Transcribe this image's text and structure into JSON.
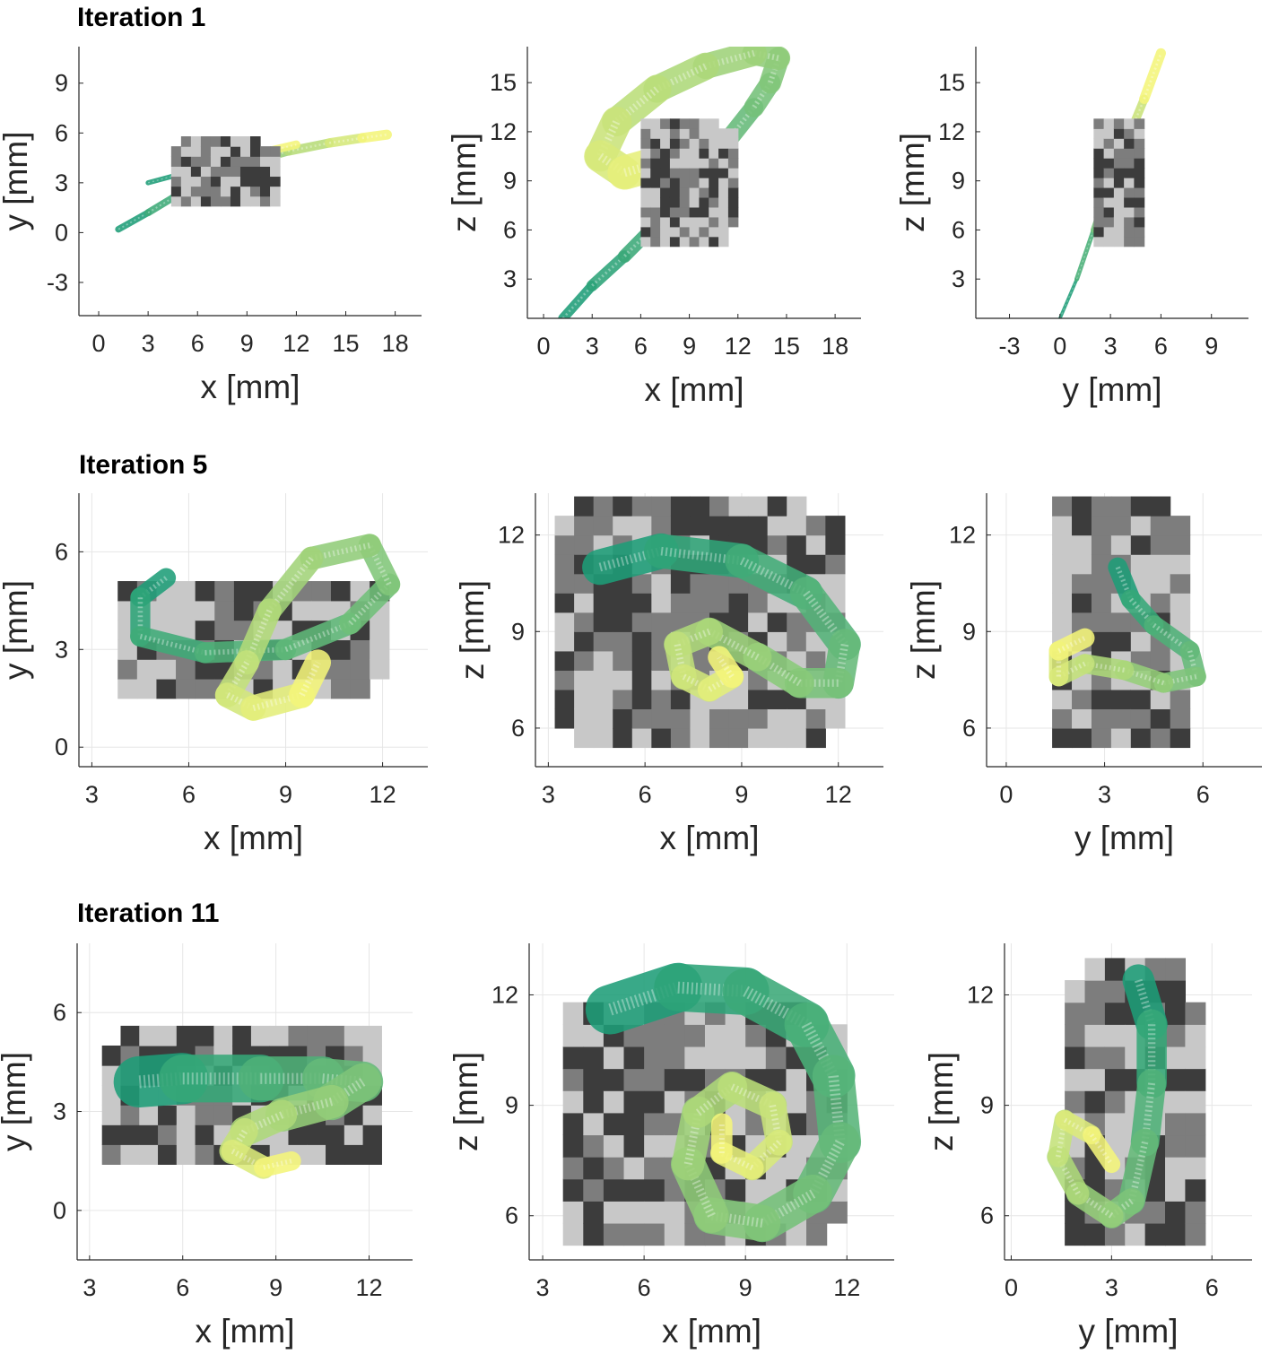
{
  "rows": [
    {
      "title": "Iteration 1"
    },
    {
      "title": "Iteration 5"
    },
    {
      "title": "Iteration 11"
    }
  ],
  "colors": {
    "spiral_start": "#1e9d78",
    "spiral_end": "#f4f57a",
    "voxel_dark": "#3c3c3c",
    "voxel_mid": "#7d7d7d",
    "voxel_light": "#c8c8c8",
    "axis": "#262626",
    "grid": "#e6e6e6"
  },
  "chart_data": [
    {
      "type": "surface-projection",
      "row": 0,
      "view": "top",
      "grid": false,
      "xlabel": "x [mm]",
      "ylabel": "y [mm]",
      "xticks": [
        0,
        3,
        6,
        9,
        12,
        15,
        18
      ],
      "yticks": [
        -3,
        0,
        3,
        6,
        9
      ],
      "xlim": [
        -1.2,
        19.6
      ],
      "ylim": [
        -5,
        11.2
      ],
      "series": [
        {
          "kind": "spiral",
          "points": [
            [
              1.2,
              0.2
            ],
            [
              3,
              1.2
            ],
            [
              5,
              2.4
            ],
            [
              7,
              3.4
            ],
            [
              9,
              4.2
            ],
            [
              11.5,
              4.9
            ],
            [
              14,
              5.4
            ],
            [
              16,
              5.7
            ],
            [
              17.5,
              5.9
            ]
          ],
          "width_start": 0.4,
          "width_end": 0.6
        },
        {
          "kind": "spiral",
          "points": [
            [
              3,
              3
            ],
            [
              6,
              3.8
            ],
            [
              9,
              4.6
            ],
            [
              12,
              5.3
            ]
          ],
          "width_start": 0.3,
          "width_end": 0.5
        },
        {
          "kind": "voxels",
          "bbox": [
            4.4,
            1.6,
            10.8,
            5.2
          ]
        }
      ]
    },
    {
      "type": "surface-projection",
      "row": 0,
      "view": "front",
      "grid": false,
      "xlabel": "x [mm]",
      "ylabel": "z [mm]",
      "xticks": [
        0,
        3,
        6,
        9,
        12,
        15,
        18
      ],
      "yticks": [
        3,
        6,
        9,
        12,
        15
      ],
      "xlim": [
        -1,
        19.6
      ],
      "ylim": [
        0.6,
        17.2
      ],
      "series": [
        {
          "kind": "spiral",
          "points": [
            [
              1.2,
              0.6
            ],
            [
              3,
              2.6
            ],
            [
              5,
              4.4
            ],
            [
              7,
              6.4
            ],
            [
              9,
              8.6
            ],
            [
              11,
              11
            ],
            [
              13,
              13.5
            ],
            [
              14,
              15
            ],
            [
              14.5,
              16.5
            ],
            [
              13,
              16.8
            ],
            [
              10,
              16
            ],
            [
              7,
              14.6
            ],
            [
              4.5,
              12.6
            ],
            [
              3.5,
              10.5
            ],
            [
              5,
              9.5
            ],
            [
              7.5,
              10.2
            ],
            [
              9.5,
              11
            ]
          ],
          "width_start": 0.6,
          "width_end": 2.2
        },
        {
          "kind": "voxels",
          "bbox": [
            6,
            5,
            11.4,
            12.4
          ]
        }
      ]
    },
    {
      "type": "surface-projection",
      "row": 0,
      "view": "side",
      "grid": false,
      "xlabel": "y [mm]",
      "ylabel": "z [mm]",
      "xticks": [
        -3,
        0,
        3,
        6,
        9
      ],
      "yticks": [
        3,
        6,
        9,
        12,
        15
      ],
      "xlim": [
        -5,
        11.2
      ],
      "ylim": [
        0.6,
        17.2
      ],
      "series": [
        {
          "kind": "spiral",
          "points": [
            [
              0,
              0.6
            ],
            [
              1,
              3
            ],
            [
              2,
              6
            ],
            [
              3,
              9
            ],
            [
              4,
              11.5
            ],
            [
              5,
              14
            ],
            [
              6,
              16.8
            ]
          ],
          "width_start": 0.2,
          "width_end": 0.6
        },
        {
          "kind": "voxels",
          "bbox": [
            2,
            5,
            5,
            12.5
          ]
        }
      ]
    },
    {
      "type": "surface-projection",
      "row": 1,
      "view": "top",
      "grid": true,
      "xlabel": "x [mm]",
      "ylabel": "y [mm]",
      "xticks": [
        3,
        6,
        9,
        12
      ],
      "yticks": [
        0,
        3,
        6
      ],
      "xlim": [
        2.6,
        13.4
      ],
      "ylim": [
        -0.6,
        7.8
      ],
      "series": [
        {
          "kind": "voxels",
          "bbox": [
            3.8,
            1.5,
            12,
            5.1
          ]
        },
        {
          "kind": "spiral",
          "points": [
            [
              5.3,
              5.2
            ],
            [
              4.5,
              4.6
            ],
            [
              4.5,
              3.4
            ],
            [
              6.5,
              2.9
            ],
            [
              9,
              3
            ],
            [
              11,
              3.8
            ],
            [
              12.2,
              5
            ],
            [
              11.6,
              6.2
            ],
            [
              9.8,
              5.8
            ],
            [
              8.5,
              4.2
            ],
            [
              7.8,
              2.6
            ],
            [
              7.2,
              1.6
            ],
            [
              8,
              1.2
            ],
            [
              9.5,
              1.6
            ],
            [
              10,
              2.6
            ]
          ],
          "width_start": 0.6,
          "width_end": 0.8
        }
      ]
    },
    {
      "type": "surface-projection",
      "row": 1,
      "view": "front",
      "grid": true,
      "xlabel": "x [mm]",
      "ylabel": "z [mm]",
      "xticks": [
        3,
        6,
        9,
        12
      ],
      "yticks": [
        6,
        9,
        12
      ],
      "xlim": [
        2.6,
        13.4
      ],
      "ylim": [
        4.8,
        13.3
      ],
      "series": [
        {
          "kind": "voxels",
          "bbox": [
            3.2,
            5.4,
            11.6,
            12.6
          ]
        },
        {
          "kind": "spiral",
          "points": [
            [
              4.6,
              11
            ],
            [
              6.5,
              11.5
            ],
            [
              9,
              11.2
            ],
            [
              11,
              10.2
            ],
            [
              12.2,
              8.6
            ],
            [
              12,
              7.4
            ],
            [
              10.8,
              7.4
            ],
            [
              9.5,
              8.2
            ],
            [
              8,
              9
            ],
            [
              7,
              8.6
            ],
            [
              7.2,
              7.6
            ],
            [
              8,
              7.2
            ],
            [
              8.7,
              7.6
            ],
            [
              8.3,
              8.2
            ]
          ],
          "width_start": 1.1,
          "width_end": 0.7
        }
      ]
    },
    {
      "type": "surface-projection",
      "row": 1,
      "view": "side",
      "grid": true,
      "xlabel": "y [mm]",
      "ylabel": "z [mm]",
      "xticks": [
        0,
        3,
        6
      ],
      "yticks": [
        6,
        9,
        12
      ],
      "xlim": [
        -0.6,
        7.8
      ],
      "ylim": [
        4.8,
        13.3
      ],
      "series": [
        {
          "kind": "voxels",
          "bbox": [
            1.4,
            5.4,
            5.4,
            12.8
          ]
        },
        {
          "kind": "spiral",
          "points": [
            [
              3.4,
              11
            ],
            [
              3.8,
              10
            ],
            [
              4.5,
              9.2
            ],
            [
              5.6,
              8.4
            ],
            [
              5.8,
              7.6
            ],
            [
              4.8,
              7.4
            ],
            [
              3.6,
              7.8
            ],
            [
              2.4,
              8
            ],
            [
              1.6,
              7.6
            ],
            [
              1.6,
              8.4
            ],
            [
              2.4,
              8.8
            ]
          ],
          "width_start": 0.6,
          "width_end": 0.6
        }
      ]
    },
    {
      "type": "surface-projection",
      "row": 2,
      "view": "top",
      "grid": true,
      "xlabel": "x [mm]",
      "ylabel": "y [mm]",
      "xticks": [
        3,
        6,
        9,
        12
      ],
      "yticks": [
        0,
        3,
        6
      ],
      "xlim": [
        2.6,
        13.4
      ],
      "ylim": [
        -1.5,
        8.1
      ],
      "series": [
        {
          "kind": "voxels",
          "bbox": [
            3.4,
            1.4,
            12,
            5.5
          ]
        },
        {
          "kind": "spiral",
          "points": [
            [
              4.6,
              3.9
            ],
            [
              6,
              4
            ],
            [
              8.5,
              4
            ],
            [
              10.5,
              4
            ],
            [
              11.8,
              3.9
            ],
            [
              10.8,
              3.3
            ],
            [
              9.2,
              2.9
            ],
            [
              8,
              2.4
            ],
            [
              7.6,
              1.8
            ],
            [
              8.6,
              1.3
            ],
            [
              9.5,
              1.5
            ]
          ],
          "width_start": 1.6,
          "width_end": 0.6
        }
      ]
    },
    {
      "type": "surface-projection",
      "row": 2,
      "view": "front",
      "grid": true,
      "xlabel": "x [mm]",
      "ylabel": "z [mm]",
      "xticks": [
        3,
        6,
        9,
        12
      ],
      "yticks": [
        6,
        9,
        12
      ],
      "xlim": [
        2.6,
        13.4
      ],
      "ylim": [
        4.8,
        13.4
      ],
      "series": [
        {
          "kind": "voxels",
          "bbox": [
            3.6,
            5.2,
            11.4,
            11.6
          ]
        },
        {
          "kind": "spiral",
          "points": [
            [
              5,
              11.6
            ],
            [
              7,
              12.2
            ],
            [
              9,
              12.1
            ],
            [
              10.8,
              11.2
            ],
            [
              11.6,
              9.8
            ],
            [
              11.8,
              8
            ],
            [
              11,
              6.6
            ],
            [
              9.5,
              5.8
            ],
            [
              8,
              6
            ],
            [
              7.3,
              7.4
            ],
            [
              7.6,
              8.8
            ],
            [
              8.6,
              9.5
            ],
            [
              9.8,
              9
            ],
            [
              10,
              8
            ],
            [
              9.2,
              7.3
            ],
            [
              8.3,
              7.7
            ],
            [
              8.3,
              8.5
            ]
          ],
          "width_start": 1.4,
          "width_end": 0.6
        }
      ]
    },
    {
      "type": "surface-projection",
      "row": 2,
      "view": "side",
      "grid": true,
      "xlabel": "y [mm]",
      "ylabel": "z [mm]",
      "xticks": [
        0,
        3,
        6
      ],
      "yticks": [
        6,
        9,
        12
      ],
      "xlim": [
        -0.2,
        7.2
      ],
      "ylim": [
        4.8,
        13.4
      ],
      "series": [
        {
          "kind": "voxels",
          "bbox": [
            1.6,
            5.2,
            5.4,
            12.4
          ]
        },
        {
          "kind": "spiral",
          "points": [
            [
              3.8,
              12.4
            ],
            [
              4.2,
              11.2
            ],
            [
              4.2,
              9.6
            ],
            [
              4,
              8
            ],
            [
              3.6,
              6.4
            ],
            [
              3,
              6
            ],
            [
              2,
              6.6
            ],
            [
              1.4,
              7.6
            ],
            [
              1.6,
              8.6
            ],
            [
              2.4,
              8.2
            ],
            [
              3,
              7.4
            ]
          ],
          "width_start": 0.9,
          "width_end": 0.5
        }
      ]
    }
  ]
}
